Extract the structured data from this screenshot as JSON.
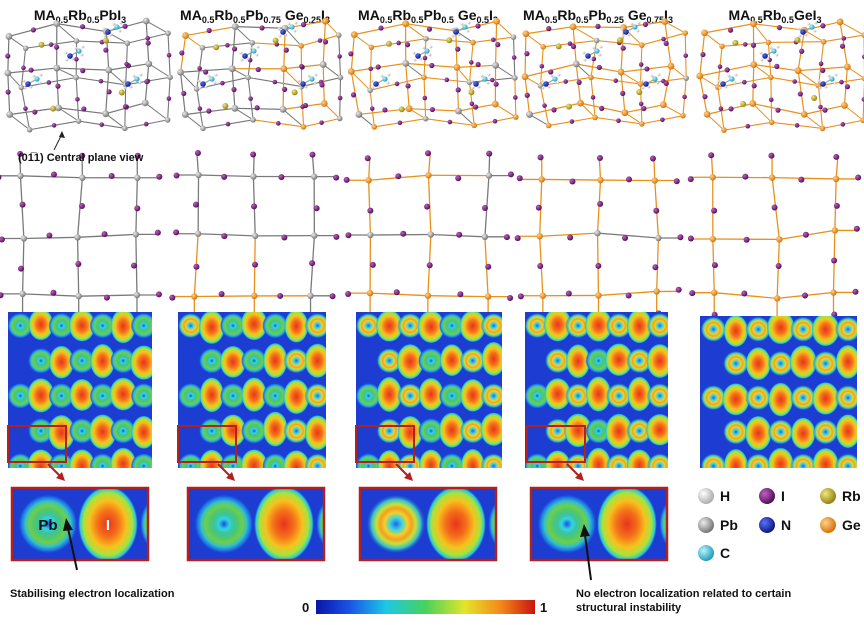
{
  "columns": [
    {
      "title": {
        "t": [
          {
            "s": "MA"
          },
          {
            "s": "0.5",
            "sub": true
          },
          {
            "s": "Rb"
          },
          {
            "s": "0.5",
            "sub": true
          },
          {
            "s": "PbI"
          },
          {
            "s": "3",
            "sub": true
          }
        ]
      },
      "ge": 0
    },
    {
      "title": {
        "t": [
          {
            "s": "MA"
          },
          {
            "s": "0.5",
            "sub": true
          },
          {
            "s": "Rb"
          },
          {
            "s": "0.5",
            "sub": true
          },
          {
            "s": "Pb"
          },
          {
            "s": "0.75",
            "sub": true
          },
          {
            "s": " Ge"
          },
          {
            "s": "0.25",
            "sub": true
          },
          {
            "s": "I"
          },
          {
            "s": "3",
            "sub": true
          }
        ]
      },
      "ge": 0.25
    },
    {
      "title": {
        "t": [
          {
            "s": "MA"
          },
          {
            "s": "0.5",
            "sub": true
          },
          {
            "s": "Rb"
          },
          {
            "s": "0.5",
            "sub": true
          },
          {
            "s": "Pb"
          },
          {
            "s": "0.5",
            "sub": true
          },
          {
            "s": " Ge"
          },
          {
            "s": "0.5",
            "sub": true
          },
          {
            "s": "I"
          },
          {
            "s": "3",
            "sub": true
          }
        ]
      },
      "ge": 0.5
    },
    {
      "title": {
        "t": [
          {
            "s": "MA"
          },
          {
            "s": "0.5",
            "sub": true
          },
          {
            "s": "Rb"
          },
          {
            "s": "0.5",
            "sub": true
          },
          {
            "s": "Pb"
          },
          {
            "s": "0.25",
            "sub": true
          },
          {
            "s": " Ge"
          },
          {
            "s": "0.75",
            "sub": true
          },
          {
            "s": "I"
          },
          {
            "s": "3",
            "sub": true
          }
        ]
      },
      "ge": 0.75
    },
    {
      "title": {
        "t": [
          {
            "s": "MA"
          },
          {
            "s": "0.5",
            "sub": true
          },
          {
            "s": "Rb"
          },
          {
            "s": "0.5",
            "sub": true
          },
          {
            "s": "GeI"
          },
          {
            "s": "3",
            "sub": true
          }
        ]
      },
      "ge": 1
    }
  ],
  "plane_label": "(01̅1) Central plane view",
  "zoom_labels": {
    "pb": "Pb",
    "i": "I"
  },
  "annotations": {
    "left": "Stabilising electron localization",
    "right_line1": "No electron localization related to certain",
    "right_line2": "structural instability"
  },
  "colorbar": {
    "min": "0",
    "max": "1"
  },
  "legend": [
    {
      "label": "H",
      "color": "#e6e6e6"
    },
    {
      "label": "I",
      "color": "#7a1a7a"
    },
    {
      "label": "Rb",
      "color": "#b8a21e"
    },
    {
      "label": "Pb",
      "color": "#8a8a8a"
    },
    {
      "label": "N",
      "color": "#1c2a9c"
    },
    {
      "label": "Ge",
      "color": "#f08a10"
    },
    {
      "label": "C",
      "color": "#35c0dc"
    }
  ],
  "colors": {
    "pb": "#8a8a8a",
    "ge": "#e8901c",
    "iodine": "#6a1670",
    "rb": "#b7a228",
    "frame": "#b0211f"
  }
}
